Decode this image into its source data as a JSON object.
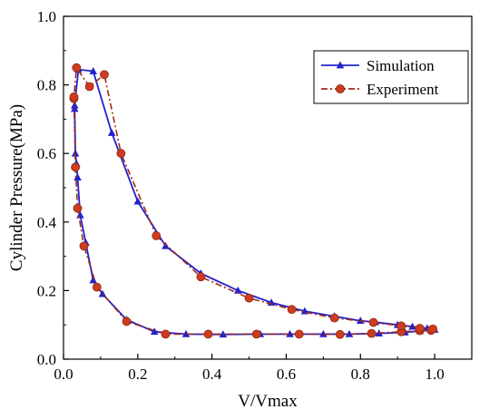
{
  "chart_data": {
    "type": "line",
    "title": "",
    "xlabel": "V/Vmax",
    "ylabel": "Cylinder Pressure(MPa)",
    "xlim": [
      0.0,
      1.1
    ],
    "ylim": [
      0.0,
      1.0
    ],
    "xticks": [
      "0.0",
      "0.2",
      "0.4",
      "0.6",
      "0.8",
      "1.0"
    ],
    "yticks": [
      "0.0",
      "0.2",
      "0.4",
      "0.6",
      "0.8",
      "1.0"
    ],
    "legend_position": "top-right",
    "series": [
      {
        "name": "Simulation",
        "color": "#2222cc",
        "line_style": "solid",
        "marker": "triangle",
        "points": [
          [
            0.03,
            0.73
          ],
          [
            0.032,
            0.6
          ],
          [
            0.035,
            0.57
          ],
          [
            0.038,
            0.53
          ],
          [
            0.045,
            0.42
          ],
          [
            0.06,
            0.34
          ],
          [
            0.08,
            0.23
          ],
          [
            0.105,
            0.19
          ],
          [
            0.17,
            0.115
          ],
          [
            0.245,
            0.08
          ],
          [
            0.33,
            0.073
          ],
          [
            0.43,
            0.072
          ],
          [
            0.53,
            0.073
          ],
          [
            0.61,
            0.073
          ],
          [
            0.7,
            0.073
          ],
          [
            0.77,
            0.073
          ],
          [
            0.85,
            0.075
          ],
          [
            0.92,
            0.078
          ],
          [
            0.96,
            0.082
          ],
          [
            0.99,
            0.085
          ],
          [
            1.0,
            0.086
          ],
          [
            0.98,
            0.09
          ],
          [
            0.94,
            0.095
          ],
          [
            0.9,
            0.1
          ],
          [
            0.84,
            0.108
          ],
          [
            0.8,
            0.112
          ],
          [
            0.73,
            0.125
          ],
          [
            0.65,
            0.14
          ],
          [
            0.56,
            0.165
          ],
          [
            0.47,
            0.2
          ],
          [
            0.37,
            0.25
          ],
          [
            0.275,
            0.33
          ],
          [
            0.2,
            0.46
          ],
          [
            0.13,
            0.66
          ],
          [
            0.08,
            0.84
          ],
          [
            0.04,
            0.845
          ],
          [
            0.03,
            0.74
          ]
        ]
      },
      {
        "name": "Experiment",
        "color": "#a02a1a",
        "line_style": "dash-dot",
        "marker": "circle",
        "points": [
          [
            0.028,
            0.76
          ],
          [
            0.032,
            0.56
          ],
          [
            0.038,
            0.44
          ],
          [
            0.055,
            0.33
          ],
          [
            0.09,
            0.21
          ],
          [
            0.17,
            0.11
          ],
          [
            0.275,
            0.073
          ],
          [
            0.39,
            0.073
          ],
          [
            0.52,
            0.073
          ],
          [
            0.635,
            0.073
          ],
          [
            0.745,
            0.072
          ],
          [
            0.83,
            0.075
          ],
          [
            0.91,
            0.08
          ],
          [
            0.96,
            0.083
          ],
          [
            0.99,
            0.084
          ],
          [
            0.995,
            0.088
          ],
          [
            0.96,
            0.09
          ],
          [
            0.91,
            0.097
          ],
          [
            0.835,
            0.107
          ],
          [
            0.73,
            0.12
          ],
          [
            0.615,
            0.145
          ],
          [
            0.5,
            0.178
          ],
          [
            0.37,
            0.24
          ],
          [
            0.25,
            0.36
          ],
          [
            0.155,
            0.6
          ],
          [
            0.11,
            0.83
          ],
          [
            0.07,
            0.795
          ],
          [
            0.035,
            0.85
          ],
          [
            0.028,
            0.765
          ]
        ]
      }
    ]
  }
}
